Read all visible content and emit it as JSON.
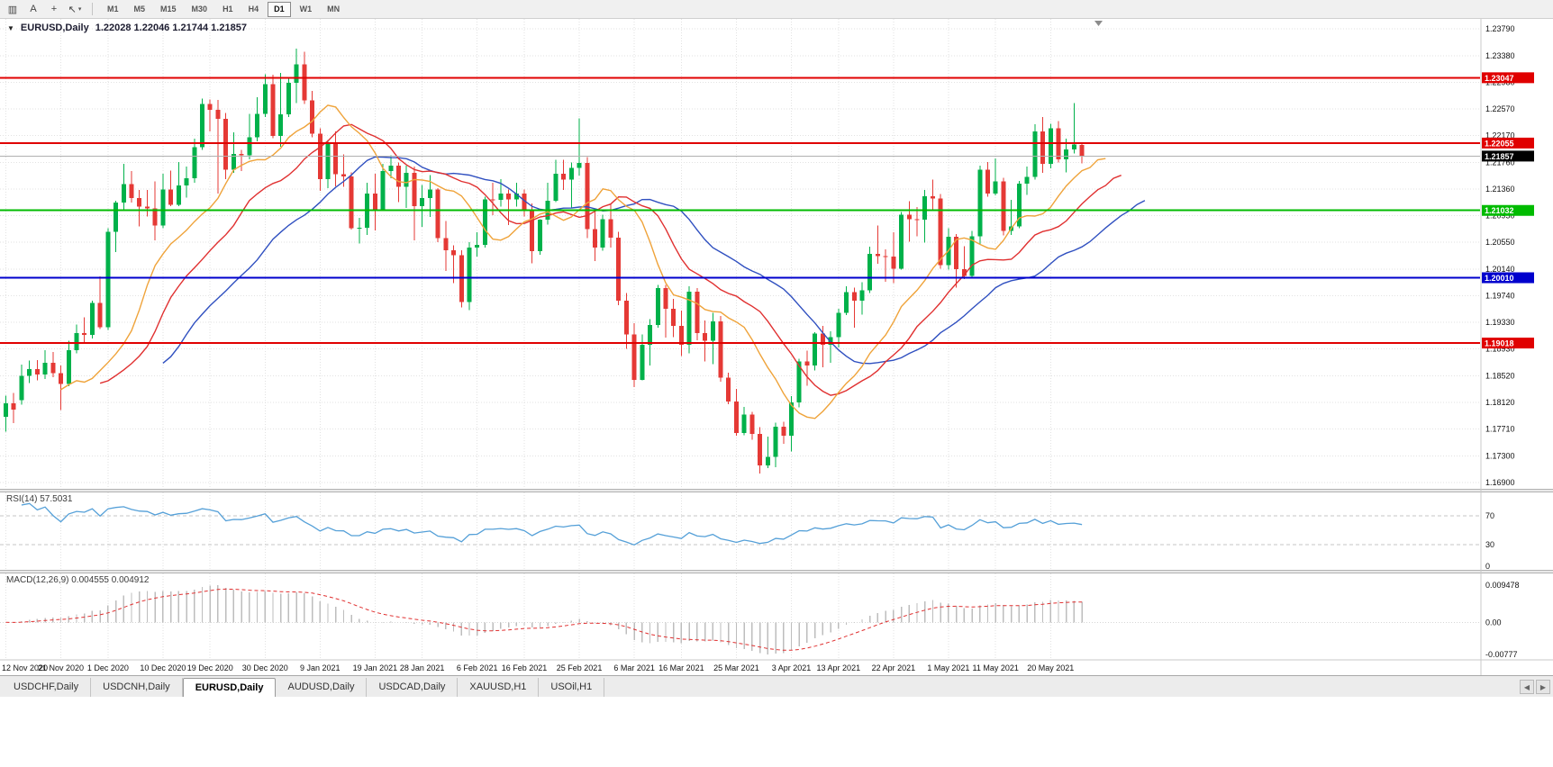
{
  "toolbar": {
    "icons": [
      {
        "name": "chart-window-icon",
        "glyph": "▥"
      },
      {
        "name": "text-label-tool-icon",
        "glyph": "A"
      },
      {
        "name": "crosshair-tool-icon",
        "glyph": "+"
      },
      {
        "name": "cursor-tool-icon",
        "glyph": "↖",
        "caret": "▾"
      }
    ],
    "timeframes": [
      "M1",
      "M5",
      "M15",
      "M30",
      "H1",
      "H4",
      "D1",
      "W1",
      "MN"
    ],
    "active_timeframe": "D1"
  },
  "chart_header": {
    "collapse_icon": "▼",
    "symbol": "EURUSD,Daily",
    "ohlc": "1.22028 1.22046 1.21744 1.21857"
  },
  "chart_data": {
    "type": "candlestick",
    "symbol": "EURUSD",
    "period": "Daily",
    "candle_colors": {
      "up": "#00B14A",
      "down": "#E53935"
    },
    "y_axis": {
      "ticks": [
        "1.23790",
        "1.23380",
        "1.22980",
        "1.22570",
        "1.22170",
        "1.21760",
        "1.21360",
        "1.20950",
        "1.20550",
        "1.20140",
        "1.19740",
        "1.19330",
        "1.18930",
        "1.18520",
        "1.18120",
        "1.17710",
        "1.17300",
        "1.16900"
      ]
    },
    "x_axis": {
      "labels": [
        {
          "text": "12 Nov 2020",
          "index": 0
        },
        {
          "text": "21 Nov 2020",
          "index": 7
        },
        {
          "text": "1 Dec 2020",
          "index": 13
        },
        {
          "text": "10 Dec 2020",
          "index": 20
        },
        {
          "text": "19 Dec 2020",
          "index": 26
        },
        {
          "text": "30 Dec 2020",
          "index": 33
        },
        {
          "text": "9 Jan 2021",
          "index": 40
        },
        {
          "text": "19 Jan 2021",
          "index": 47
        },
        {
          "text": "28 Jan 2021",
          "index": 53
        },
        {
          "text": "6 Feb 2021",
          "index": 60
        },
        {
          "text": "16 Feb 2021",
          "index": 66
        },
        {
          "text": "25 Feb 2021",
          "index": 73
        },
        {
          "text": "6 Mar 2021",
          "index": 80
        },
        {
          "text": "16 Mar 2021",
          "index": 86
        },
        {
          "text": "25 Mar 2021",
          "index": 93
        },
        {
          "text": "3 Apr 2021",
          "index": 100
        },
        {
          "text": "13 Apr 2021",
          "index": 106
        },
        {
          "text": "22 Apr 2021",
          "index": 113
        },
        {
          "text": "1 May 2021",
          "index": 120
        },
        {
          "text": "11 May 2021",
          "index": 126
        },
        {
          "text": "20 May 2021",
          "index": 133
        }
      ]
    },
    "candles": [
      [
        1.179,
        1.1822,
        1.1767,
        1.181
      ],
      [
        1.181,
        1.1826,
        1.178,
        1.1801
      ],
      [
        1.1815,
        1.1869,
        1.1808,
        1.1852
      ],
      [
        1.1852,
        1.1875,
        1.1841,
        1.1862
      ],
      [
        1.1862,
        1.1876,
        1.1845,
        1.1854
      ],
      [
        1.1854,
        1.1891,
        1.1847,
        1.1872
      ],
      [
        1.1872,
        1.1888,
        1.185,
        1.1856
      ],
      [
        1.1856,
        1.1868,
        1.18,
        1.184
      ],
      [
        1.184,
        1.1905,
        1.1836,
        1.1891
      ],
      [
        1.1891,
        1.193,
        1.1886,
        1.1917
      ],
      [
        1.1917,
        1.1941,
        1.1901,
        1.1914
      ],
      [
        1.1914,
        1.1966,
        1.1909,
        1.1963
      ],
      [
        1.1963,
        1.2003,
        1.1923,
        1.1926
      ],
      [
        1.1926,
        1.2076,
        1.1922,
        1.2071
      ],
      [
        1.2071,
        1.2118,
        1.204,
        1.2115
      ],
      [
        1.2115,
        1.2174,
        1.2105,
        1.2143
      ],
      [
        1.2143,
        1.2163,
        1.2115,
        1.2122
      ],
      [
        1.2122,
        1.2134,
        1.2079,
        1.2109
      ],
      [
        1.2109,
        1.2134,
        1.2094,
        1.2106
      ],
      [
        1.2106,
        1.2147,
        1.2058,
        1.208
      ],
      [
        1.208,
        1.2159,
        1.2076,
        1.2135
      ],
      [
        1.2135,
        1.2164,
        1.211,
        1.2112
      ],
      [
        1.2112,
        1.2177,
        1.211,
        1.2141
      ],
      [
        1.2141,
        1.217,
        1.2123,
        1.2152
      ],
      [
        1.2152,
        1.2212,
        1.2145,
        1.2199
      ],
      [
        1.2199,
        1.2273,
        1.2195,
        1.2265
      ],
      [
        1.2265,
        1.2272,
        1.2223,
        1.2256
      ],
      [
        1.2256,
        1.2271,
        1.2129,
        1.2242
      ],
      [
        1.2242,
        1.2251,
        1.2151,
        1.2165
      ],
      [
        1.2165,
        1.2222,
        1.216,
        1.2189
      ],
      [
        1.2189,
        1.2195,
        1.2163,
        1.2187
      ],
      [
        1.2187,
        1.225,
        1.2181,
        1.2214
      ],
      [
        1.2214,
        1.2275,
        1.2208,
        1.225
      ],
      [
        1.225,
        1.231,
        1.2245,
        1.2295
      ],
      [
        1.2295,
        1.2309,
        1.2213,
        1.2216
      ],
      [
        1.2216,
        1.2312,
        1.22,
        1.2249
      ],
      [
        1.2249,
        1.2304,
        1.2245,
        1.2297
      ],
      [
        1.2297,
        1.2349,
        1.2266,
        1.2325
      ],
      [
        1.2325,
        1.2344,
        1.2265,
        1.227
      ],
      [
        1.227,
        1.2285,
        1.2214,
        1.222
      ],
      [
        1.222,
        1.2228,
        1.2133,
        1.2151
      ],
      [
        1.2151,
        1.221,
        1.2137,
        1.2207
      ],
      [
        1.2207,
        1.2223,
        1.214,
        1.2158
      ],
      [
        1.2158,
        1.2188,
        1.2139,
        1.2155
      ],
      [
        1.2155,
        1.2161,
        1.2074,
        1.2076
      ],
      [
        1.2076,
        1.2092,
        1.2053,
        1.2077
      ],
      [
        1.2077,
        1.2145,
        1.2066,
        1.2129
      ],
      [
        1.2129,
        1.2159,
        1.2073,
        1.2105
      ],
      [
        1.2105,
        1.2174,
        1.2103,
        1.2163
      ],
      [
        1.2163,
        1.2187,
        1.2152,
        1.2171
      ],
      [
        1.2171,
        1.2176,
        1.2116,
        1.2139
      ],
      [
        1.2139,
        1.2171,
        1.2107,
        1.216
      ],
      [
        1.216,
        1.217,
        1.2058,
        1.211
      ],
      [
        1.211,
        1.2142,
        1.2078,
        1.2122
      ],
      [
        1.2122,
        1.2157,
        1.2093,
        1.2135
      ],
      [
        1.2135,
        1.2137,
        1.2055,
        1.2061
      ],
      [
        1.2061,
        1.2087,
        1.2011,
        1.2043
      ],
      [
        1.2043,
        1.205,
        1.1993,
        1.2035
      ],
      [
        1.2035,
        1.2043,
        1.1956,
        1.1964
      ],
      [
        1.1964,
        1.2055,
        1.1952,
        1.2047
      ],
      [
        1.2047,
        1.207,
        1.2033,
        1.2051
      ],
      [
        1.2051,
        1.2124,
        1.2047,
        1.212
      ],
      [
        1.212,
        1.2145,
        1.2096,
        1.2119
      ],
      [
        1.2119,
        1.2151,
        1.2109,
        1.2129
      ],
      [
        1.2129,
        1.2135,
        1.2081,
        1.212
      ],
      [
        1.212,
        1.2145,
        1.2109,
        1.2129
      ],
      [
        1.2129,
        1.2135,
        1.2094,
        1.2105
      ],
      [
        1.2105,
        1.2114,
        1.2023,
        1.2041
      ],
      [
        1.2041,
        1.209,
        1.2036,
        1.2089
      ],
      [
        1.2089,
        1.2145,
        1.2082,
        1.2118
      ],
      [
        1.2118,
        1.218,
        1.2116,
        1.2159
      ],
      [
        1.2159,
        1.218,
        1.2134,
        1.215
      ],
      [
        1.215,
        1.2176,
        1.2107,
        1.2168
      ],
      [
        1.2168,
        1.2243,
        1.2156,
        1.2175
      ],
      [
        1.2175,
        1.2184,
        1.2061,
        1.2075
      ],
      [
        1.2075,
        1.2101,
        1.2026,
        1.2047
      ],
      [
        1.2047,
        1.2097,
        1.2042,
        1.209
      ],
      [
        1.209,
        1.2113,
        1.2047,
        1.2062
      ],
      [
        1.2062,
        1.2071,
        1.1959,
        1.1966
      ],
      [
        1.1966,
        1.1978,
        1.1893,
        1.1915
      ],
      [
        1.1915,
        1.1932,
        1.1835,
        1.1846
      ],
      [
        1.1846,
        1.1915,
        1.1845,
        1.1899
      ],
      [
        1.1899,
        1.1938,
        1.1868,
        1.1929
      ],
      [
        1.1929,
        1.199,
        1.1925,
        1.1985
      ],
      [
        1.1985,
        1.199,
        1.191,
        1.1954
      ],
      [
        1.1954,
        1.1969,
        1.1911,
        1.1928
      ],
      [
        1.1928,
        1.1951,
        1.1882,
        1.1899
      ],
      [
        1.1899,
        1.1988,
        1.1886,
        1.198
      ],
      [
        1.198,
        1.1985,
        1.1906,
        1.1917
      ],
      [
        1.1917,
        1.1936,
        1.1874,
        1.1905
      ],
      [
        1.1905,
        1.1948,
        1.187,
        1.1935
      ],
      [
        1.1935,
        1.1943,
        1.1843,
        1.1849
      ],
      [
        1.1849,
        1.1857,
        1.1809,
        1.1813
      ],
      [
        1.1813,
        1.1832,
        1.1761,
        1.1765
      ],
      [
        1.1765,
        1.1805,
        1.1762,
        1.1793
      ],
      [
        1.1793,
        1.1797,
        1.1755,
        1.1764
      ],
      [
        1.1764,
        1.1774,
        1.1704,
        1.1716
      ],
      [
        1.1716,
        1.176,
        1.1712,
        1.1729
      ],
      [
        1.1729,
        1.1781,
        1.1713,
        1.1775
      ],
      [
        1.1775,
        1.1782,
        1.1749,
        1.1761
      ],
      [
        1.1761,
        1.1821,
        1.1737,
        1.1812
      ],
      [
        1.1812,
        1.1878,
        1.1804,
        1.1874
      ],
      [
        1.1874,
        1.189,
        1.1837,
        1.1868
      ],
      [
        1.1868,
        1.1918,
        1.186,
        1.1916
      ],
      [
        1.1916,
        1.1928,
        1.1865,
        1.1899
      ],
      [
        1.1899,
        1.192,
        1.1872,
        1.1911
      ],
      [
        1.1911,
        1.1954,
        1.1895,
        1.1948
      ],
      [
        1.1948,
        1.1988,
        1.1944,
        1.1979
      ],
      [
        1.1979,
        1.1986,
        1.1925,
        1.1966
      ],
      [
        1.1966,
        1.1994,
        1.1945,
        1.1982
      ],
      [
        1.1982,
        1.2048,
        1.1978,
        1.2037
      ],
      [
        1.2037,
        1.208,
        1.2022,
        1.2034
      ],
      [
        1.2034,
        1.2044,
        1.1995,
        1.2033
      ],
      [
        1.2033,
        1.207,
        1.1993,
        1.2015
      ],
      [
        1.2015,
        1.2101,
        1.2013,
        1.2097
      ],
      [
        1.2097,
        1.2117,
        1.2056,
        1.209
      ],
      [
        1.209,
        1.2108,
        1.2064,
        1.2089
      ],
      [
        1.2089,
        1.2134,
        1.2054,
        1.2125
      ],
      [
        1.2125,
        1.215,
        1.2103,
        1.2121
      ],
      [
        1.2121,
        1.2128,
        1.2015,
        1.202
      ],
      [
        1.202,
        1.2076,
        1.2013,
        1.2063
      ],
      [
        1.2063,
        1.2067,
        1.1986,
        1.2014
      ],
      [
        1.2014,
        1.2049,
        1.1999,
        1.2004
      ],
      [
        1.2004,
        1.2072,
        1.2,
        1.2064
      ],
      [
        1.2064,
        1.2171,
        1.2051,
        1.2165
      ],
      [
        1.2165,
        1.2177,
        1.2124,
        1.2129
      ],
      [
        1.2129,
        1.2182,
        1.2126,
        1.2147
      ],
      [
        1.2147,
        1.2153,
        1.2065,
        1.2072
      ],
      [
        1.2072,
        1.2119,
        1.2066,
        1.2079
      ],
      [
        1.2079,
        1.2148,
        1.2076,
        1.2144
      ],
      [
        1.2144,
        1.217,
        1.2127,
        1.2154
      ],
      [
        1.2154,
        1.2234,
        1.215,
        1.2223
      ],
      [
        1.2223,
        1.2245,
        1.216,
        1.2174
      ],
      [
        1.2174,
        1.2235,
        1.2167,
        1.2228
      ],
      [
        1.2228,
        1.2239,
        1.2176,
        1.2181
      ],
      [
        1.2181,
        1.2212,
        1.2161,
        1.2196
      ],
      [
        1.2196,
        1.2266,
        1.219,
        1.2203
      ],
      [
        1.22028,
        1.22046,
        1.21744,
        1.21857
      ]
    ],
    "horizontal_lines": [
      {
        "value": 1.23047,
        "label": "1.23047",
        "color": "#E00000"
      },
      {
        "value": 1.22055,
        "label": "1.22055",
        "color": "#E00000"
      },
      {
        "value": 1.21032,
        "label": "1.21032",
        "color": "#00BB00"
      },
      {
        "value": 1.2001,
        "label": "1.20010",
        "color": "#0000CD"
      },
      {
        "value": 1.19018,
        "label": "1.19018",
        "color": "#E00000"
      }
    ],
    "current_price": {
      "value": 1.21857,
      "label": "1.21857",
      "line_color": "#B0B0B0",
      "badge_color": "#000000"
    },
    "overlays": {
      "alligator": {
        "jaw": {
          "period": 13,
          "shift": 8,
          "color": "#3050C0"
        },
        "teeth": {
          "period": 8,
          "shift": 5,
          "color": "#E03030"
        },
        "lips": {
          "period": 5,
          "shift": 3,
          "color": "#EFA33A"
        }
      }
    },
    "indicator_panels": [
      {
        "id": "rsi",
        "label": "RSI(14) 57.5031",
        "type": "line",
        "color": "#55A0D8",
        "levels": [
          70,
          30
        ],
        "axis_labels": [
          "70",
          "30",
          "0"
        ]
      },
      {
        "id": "macd",
        "label": "MACD(12,26,9) 0.004555 0.004912",
        "type": "histogram+signal",
        "histogram_color": "#BDBDBD",
        "signal_color": "#E03030",
        "axis_labels": [
          "0.009478",
          "0.00",
          "-0.00777"
        ]
      }
    ]
  },
  "tabs": {
    "items": [
      {
        "label": "USDCHF,Daily"
      },
      {
        "label": "USDCNH,Daily"
      },
      {
        "label": "EURUSD,Daily",
        "active": true
      },
      {
        "label": "AUDUSD,Daily"
      },
      {
        "label": "USDCAD,Daily"
      },
      {
        "label": "XAUUSD,H1"
      },
      {
        "label": "USOil,H1"
      }
    ],
    "scroll_left": "◀",
    "scroll_right": "▶"
  }
}
